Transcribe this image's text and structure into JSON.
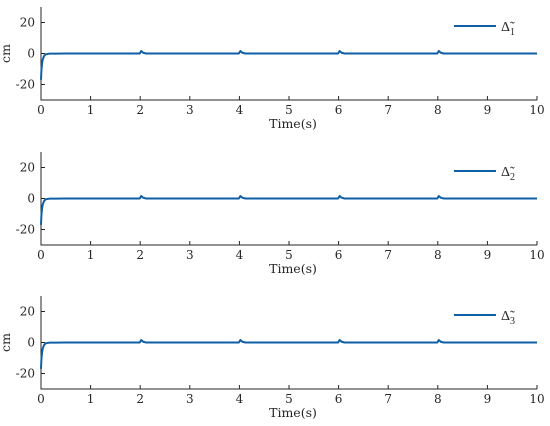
{
  "chart_data": [
    {
      "type": "line",
      "xlabel": "Time(s)",
      "ylabel": "cm",
      "xlim": [
        0,
        10
      ],
      "ylim": [
        -30,
        30
      ],
      "xticks": [
        "0",
        "1",
        "2",
        "3",
        "4",
        "5",
        "6",
        "7",
        "8",
        "9",
        "10"
      ],
      "yticks": [
        "20",
        "0",
        "-20"
      ],
      "grid": false,
      "legend_position": "top-right",
      "legend": {
        "symbol": "Δ̃",
        "subscript": "1"
      },
      "color": "#0f5fa8",
      "x": [
        0,
        0.005,
        0.01,
        0.02,
        0.03,
        0.05,
        0.07,
        0.1,
        0.15,
        0.2,
        0.3,
        0.5,
        1.0,
        1.99,
        2.02,
        2.06,
        2.12,
        3.0,
        3.99,
        4.02,
        4.06,
        4.12,
        5.0,
        5.99,
        6.02,
        6.06,
        6.12,
        7.0,
        7.99,
        8.02,
        8.06,
        8.12,
        9.0,
        10.0
      ],
      "y": [
        -17,
        -13,
        -10,
        -7,
        -4.5,
        -2.5,
        -1.2,
        -0.5,
        -0.2,
        -0.1,
        -0.05,
        0,
        0,
        0,
        1.6,
        0.5,
        0,
        0,
        0,
        1.6,
        0.5,
        0,
        0,
        0,
        1.6,
        0.5,
        0,
        0,
        0,
        1.6,
        0.5,
        0,
        0,
        0
      ]
    },
    {
      "type": "line",
      "xlabel": "Time(s)",
      "ylabel": "",
      "xlim": [
        0,
        10
      ],
      "ylim": [
        -30,
        30
      ],
      "xticks": [
        "0",
        "1",
        "2",
        "3",
        "4",
        "5",
        "6",
        "7",
        "8",
        "9",
        "10"
      ],
      "yticks": [
        "20",
        "0",
        "-20"
      ],
      "grid": false,
      "legend_position": "top-right",
      "legend": {
        "symbol": "Δ̃",
        "subscript": "2"
      },
      "color": "#0f5fa8",
      "x": [
        0,
        0.005,
        0.01,
        0.02,
        0.03,
        0.05,
        0.07,
        0.1,
        0.15,
        0.2,
        0.3,
        0.5,
        1.0,
        1.99,
        2.02,
        2.06,
        2.12,
        3.0,
        3.99,
        4.02,
        4.06,
        4.12,
        5.0,
        5.99,
        6.02,
        6.06,
        6.12,
        7.0,
        7.99,
        8.02,
        8.06,
        8.12,
        9.0,
        10.0
      ],
      "y": [
        -17,
        -13,
        -10,
        -7,
        -4.5,
        -2.5,
        -1.2,
        -0.5,
        -0.2,
        -0.1,
        -0.05,
        0,
        0,
        0,
        1.6,
        0.5,
        0,
        0,
        0,
        1.6,
        0.5,
        0,
        0,
        0,
        1.6,
        0.5,
        0,
        0,
        0,
        1.6,
        0.5,
        0,
        0,
        0
      ]
    },
    {
      "type": "line",
      "xlabel": "Time(s)",
      "ylabel": "cm",
      "xlim": [
        0,
        10
      ],
      "ylim": [
        -30,
        30
      ],
      "xticks": [
        "0",
        "1",
        "2",
        "3",
        "4",
        "5",
        "6",
        "7",
        "8",
        "9",
        "10"
      ],
      "yticks": [
        "20",
        "0",
        "-20"
      ],
      "grid": false,
      "legend_position": "top-right",
      "legend": {
        "symbol": "Δ̃",
        "subscript": "3"
      },
      "color": "#0f5fa8",
      "x": [
        0,
        0.005,
        0.01,
        0.02,
        0.03,
        0.05,
        0.07,
        0.1,
        0.15,
        0.2,
        0.3,
        0.5,
        1.0,
        1.99,
        2.02,
        2.06,
        2.12,
        3.0,
        3.99,
        4.02,
        4.06,
        4.12,
        5.0,
        5.99,
        6.02,
        6.06,
        6.12,
        7.0,
        7.99,
        8.02,
        8.06,
        8.12,
        9.0,
        10.0
      ],
      "y": [
        -17,
        -13,
        -10,
        -7,
        -4.5,
        -2.5,
        -1.2,
        -0.5,
        -0.2,
        -0.1,
        -0.05,
        0,
        0,
        0,
        1.6,
        0.5,
        0,
        0,
        0,
        1.6,
        0.5,
        0,
        0,
        0,
        1.6,
        0.5,
        0,
        0,
        0,
        1.6,
        0.5,
        0,
        0,
        0
      ]
    }
  ]
}
